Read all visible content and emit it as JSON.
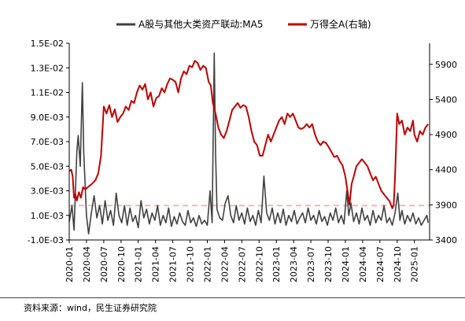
{
  "source_note": "资料来源：wind，民生证券研究院",
  "chart_data": {
    "type": "line",
    "title": "",
    "series": [
      {
        "name": "A股与其他大类资产联动:MA5",
        "axis": "left",
        "color": "#404040",
        "values": [
          [
            2020.0,
            0.0005
          ],
          [
            2020.04,
            0.0018
          ],
          [
            2020.07,
            -0.0002
          ],
          [
            2020.09,
            0.003
          ],
          [
            2020.11,
            0.0062
          ],
          [
            2020.13,
            0.0075
          ],
          [
            2020.16,
            0.005
          ],
          [
            2020.19,
            0.0118
          ],
          [
            2020.21,
            0.0062
          ],
          [
            2020.23,
            0.0035
          ],
          [
            2020.25,
            0.001
          ],
          [
            2020.28,
            -0.0005
          ],
          [
            2020.32,
            0.0012
          ],
          [
            2020.36,
            0.0026
          ],
          [
            2020.4,
            0.0008
          ],
          [
            2020.44,
            0.0018
          ],
          [
            2020.48,
            0.0003
          ],
          [
            2020.52,
            0.0022
          ],
          [
            2020.56,
            0.0006
          ],
          [
            2020.6,
            0.0014
          ],
          [
            2020.64,
            0.0002
          ],
          [
            2020.68,
            0.0028
          ],
          [
            2020.72,
            0.001
          ],
          [
            2020.76,
            0.0004
          ],
          [
            2020.8,
            0.0018
          ],
          [
            2020.84,
            0.0002
          ],
          [
            2020.88,
            0.0016
          ],
          [
            2020.92,
            0.0005
          ],
          [
            2020.96,
            0.001
          ],
          [
            2021.0,
            0.0
          ],
          [
            2021.04,
            0.0022
          ],
          [
            2021.08,
            0.0008
          ],
          [
            2021.12,
            0.0015
          ],
          [
            2021.16,
            0.0003
          ],
          [
            2021.2,
            0.0012
          ],
          [
            2021.24,
            0.0006
          ],
          [
            2021.28,
            0.0018
          ],
          [
            2021.32,
            0.0002
          ],
          [
            2021.36,
            0.001
          ],
          [
            2021.4,
            0.0004
          ],
          [
            2021.44,
            0.0016
          ],
          [
            2021.48,
            0.0001
          ],
          [
            2021.52,
            0.0009
          ],
          [
            2021.56,
            0.0003
          ],
          [
            2021.6,
            0.0012
          ],
          [
            2021.64,
            0.0005
          ],
          [
            2021.68,
            0.0002
          ],
          [
            2021.72,
            0.0014
          ],
          [
            2021.76,
            0.0004
          ],
          [
            2021.8,
            0.0008
          ],
          [
            2021.84,
            0.0001
          ],
          [
            2021.88,
            0.001
          ],
          [
            2021.92,
            0.0003
          ],
          [
            2021.96,
            0.0006
          ],
          [
            2022.0,
            0.0002
          ],
          [
            2022.04,
            0.003
          ],
          [
            2022.07,
            0.0004
          ],
          [
            2022.1,
            0.0142
          ],
          [
            2022.12,
            0.006
          ],
          [
            2022.14,
            0.0015
          ],
          [
            2022.18,
            0.0008
          ],
          [
            2022.22,
            0.0006
          ],
          [
            2022.26,
            0.002
          ],
          [
            2022.3,
            0.0026
          ],
          [
            2022.34,
            0.001
          ],
          [
            2022.38,
            0.0004
          ],
          [
            2022.42,
            0.0018
          ],
          [
            2022.46,
            0.0006
          ],
          [
            2022.5,
            0.0012
          ],
          [
            2022.54,
            0.0003
          ],
          [
            2022.58,
            0.0016
          ],
          [
            2022.62,
            0.0005
          ],
          [
            2022.66,
            0.001
          ],
          [
            2022.7,
            0.0002
          ],
          [
            2022.74,
            0.0014
          ],
          [
            2022.78,
            0.0004
          ],
          [
            2022.82,
            0.0042
          ],
          [
            2022.86,
            0.0012
          ],
          [
            2022.9,
            0.0006
          ],
          [
            2022.94,
            0.0016
          ],
          [
            2022.98,
            0.0003
          ],
          [
            2023.02,
            0.0012
          ],
          [
            2023.06,
            0.0004
          ],
          [
            2023.1,
            0.0015
          ],
          [
            2023.14,
            0.0002
          ],
          [
            2023.18,
            0.001
          ],
          [
            2023.22,
            0.0005
          ],
          [
            2023.26,
            0.0014
          ],
          [
            2023.3,
            0.0003
          ],
          [
            2023.34,
            0.0008
          ],
          [
            2023.38,
            0.0012
          ],
          [
            2023.42,
            0.0004
          ],
          [
            2023.46,
            0.0016
          ],
          [
            2023.5,
            0.0006
          ],
          [
            2023.54,
            0.001
          ],
          [
            2023.58,
            0.0003
          ],
          [
            2023.62,
            0.0014
          ],
          [
            2023.66,
            0.0005
          ],
          [
            2023.7,
            0.0009
          ],
          [
            2023.74,
            0.0002
          ],
          [
            2023.78,
            0.0012
          ],
          [
            2023.82,
            0.0006
          ],
          [
            2023.86,
            0.0016
          ],
          [
            2023.9,
            0.0004
          ],
          [
            2023.94,
            0.001
          ],
          [
            2023.98,
            0.0003
          ],
          [
            2024.02,
            0.003
          ],
          [
            2024.05,
            0.001
          ],
          [
            2024.08,
            0.002
          ],
          [
            2024.12,
            0.0005
          ],
          [
            2024.16,
            0.0012
          ],
          [
            2024.2,
            0.0003
          ],
          [
            2024.24,
            0.0016
          ],
          [
            2024.28,
            0.0006
          ],
          [
            2024.32,
            0.001
          ],
          [
            2024.36,
            0.0002
          ],
          [
            2024.4,
            0.0014
          ],
          [
            2024.44,
            0.0004
          ],
          [
            2024.48,
            0.001
          ],
          [
            2024.52,
            0.0006
          ],
          [
            2024.56,
            0.0018
          ],
          [
            2024.6,
            0.0004
          ],
          [
            2024.64,
            0.0008
          ],
          [
            2024.68,
            0.0002
          ],
          [
            2024.72,
            0.0012
          ],
          [
            2024.76,
            0.0028
          ],
          [
            2024.79,
            0.0006
          ],
          [
            2024.82,
            0.0014
          ],
          [
            2024.86,
            0.0003
          ],
          [
            2024.9,
            0.001
          ],
          [
            2024.94,
            0.0005
          ],
          [
            2024.98,
            0.0012
          ],
          [
            2025.02,
            0.0003
          ],
          [
            2025.06,
            0.0008
          ],
          [
            2025.1,
            0.0002
          ],
          [
            2025.14,
            0.0006
          ],
          [
            2025.18,
            0.001
          ],
          [
            2025.2,
            0.0004
          ]
        ]
      },
      {
        "name": "万得全A(右轴)",
        "axis": "right",
        "color": "#c00000",
        "values": [
          [
            2020.0,
            4380
          ],
          [
            2020.03,
            4400
          ],
          [
            2020.05,
            4300
          ],
          [
            2020.07,
            4000
          ],
          [
            2020.09,
            4050
          ],
          [
            2020.11,
            3960
          ],
          [
            2020.14,
            4080
          ],
          [
            2020.17,
            4000
          ],
          [
            2020.2,
            4150
          ],
          [
            2020.23,
            4120
          ],
          [
            2020.28,
            4160
          ],
          [
            2020.33,
            4200
          ],
          [
            2020.38,
            4250
          ],
          [
            2020.42,
            4350
          ],
          [
            2020.46,
            4600
          ],
          [
            2020.5,
            5300
          ],
          [
            2020.54,
            5200
          ],
          [
            2020.58,
            5320
          ],
          [
            2020.62,
            5150
          ],
          [
            2020.66,
            5260
          ],
          [
            2020.7,
            5080
          ],
          [
            2020.74,
            5150
          ],
          [
            2020.78,
            5200
          ],
          [
            2020.82,
            5300
          ],
          [
            2020.86,
            5250
          ],
          [
            2020.9,
            5380
          ],
          [
            2020.94,
            5350
          ],
          [
            2020.98,
            5500
          ],
          [
            2021.02,
            5600
          ],
          [
            2021.06,
            5540
          ],
          [
            2021.1,
            5620
          ],
          [
            2021.14,
            5400
          ],
          [
            2021.18,
            5500
          ],
          [
            2021.22,
            5300
          ],
          [
            2021.26,
            5420
          ],
          [
            2021.3,
            5450
          ],
          [
            2021.34,
            5560
          ],
          [
            2021.38,
            5500
          ],
          [
            2021.42,
            5620
          ],
          [
            2021.46,
            5700
          ],
          [
            2021.5,
            5680
          ],
          [
            2021.54,
            5650
          ],
          [
            2021.58,
            5500
          ],
          [
            2021.62,
            5700
          ],
          [
            2021.66,
            5800
          ],
          [
            2021.7,
            5760
          ],
          [
            2021.74,
            5880
          ],
          [
            2021.78,
            5860
          ],
          [
            2021.82,
            5950
          ],
          [
            2021.86,
            5920
          ],
          [
            2021.9,
            5820
          ],
          [
            2021.94,
            5880
          ],
          [
            2021.98,
            5850
          ],
          [
            2022.02,
            5650
          ],
          [
            2022.05,
            5600
          ],
          [
            2022.08,
            5350
          ],
          [
            2022.12,
            5200
          ],
          [
            2022.16,
            5000
          ],
          [
            2022.2,
            4900
          ],
          [
            2022.24,
            4850
          ],
          [
            2022.28,
            4950
          ],
          [
            2022.32,
            5100
          ],
          [
            2022.36,
            5250
          ],
          [
            2022.4,
            5300
          ],
          [
            2022.44,
            5350
          ],
          [
            2022.48,
            5280
          ],
          [
            2022.52,
            5320
          ],
          [
            2022.56,
            5300
          ],
          [
            2022.6,
            5150
          ],
          [
            2022.64,
            4950
          ],
          [
            2022.68,
            4800
          ],
          [
            2022.72,
            4750
          ],
          [
            2022.76,
            4600
          ],
          [
            2022.8,
            4600
          ],
          [
            2022.84,
            4750
          ],
          [
            2022.88,
            4900
          ],
          [
            2022.92,
            4800
          ],
          [
            2022.96,
            4900
          ],
          [
            2023.0,
            5000
          ],
          [
            2023.04,
            5100
          ],
          [
            2023.08,
            5150
          ],
          [
            2023.12,
            5050
          ],
          [
            2023.16,
            5200
          ],
          [
            2023.2,
            5150
          ],
          [
            2023.24,
            5200
          ],
          [
            2023.28,
            5100
          ],
          [
            2023.32,
            5000
          ],
          [
            2023.36,
            4980
          ],
          [
            2023.4,
            5000
          ],
          [
            2023.44,
            5050
          ],
          [
            2023.48,
            5000
          ],
          [
            2023.52,
            5050
          ],
          [
            2023.56,
            4900
          ],
          [
            2023.6,
            4800
          ],
          [
            2023.64,
            4750
          ],
          [
            2023.68,
            4800
          ],
          [
            2023.72,
            4780
          ],
          [
            2023.76,
            4720
          ],
          [
            2023.8,
            4650
          ],
          [
            2023.84,
            4580
          ],
          [
            2023.88,
            4600
          ],
          [
            2023.92,
            4520
          ],
          [
            2023.96,
            4460
          ],
          [
            2024.0,
            4300
          ],
          [
            2024.03,
            4100
          ],
          [
            2024.06,
            3900
          ],
          [
            2024.09,
            4200
          ],
          [
            2024.12,
            4300
          ],
          [
            2024.16,
            4450
          ],
          [
            2024.2,
            4500
          ],
          [
            2024.24,
            4550
          ],
          [
            2024.28,
            4500
          ],
          [
            2024.32,
            4450
          ],
          [
            2024.36,
            4350
          ],
          [
            2024.4,
            4250
          ],
          [
            2024.44,
            4300
          ],
          [
            2024.48,
            4200
          ],
          [
            2024.52,
            4100
          ],
          [
            2024.56,
            4050
          ],
          [
            2024.6,
            4000
          ],
          [
            2024.64,
            3950
          ],
          [
            2024.68,
            3850
          ],
          [
            2024.7,
            3900
          ],
          [
            2024.72,
            4300
          ],
          [
            2024.75,
            5200
          ],
          [
            2024.78,
            5050
          ],
          [
            2024.82,
            5100
          ],
          [
            2024.86,
            4900
          ],
          [
            2024.9,
            5000
          ],
          [
            2024.94,
            4950
          ],
          [
            2024.98,
            5100
          ],
          [
            2025.0,
            4900
          ],
          [
            2025.04,
            4800
          ],
          [
            2025.08,
            4950
          ],
          [
            2025.12,
            4900
          ],
          [
            2025.16,
            5000
          ],
          [
            2025.2,
            5050
          ]
        ]
      }
    ],
    "reference_line": {
      "axis": "left",
      "value": 0.0018,
      "color": "#f4b6b6",
      "style": "dashed"
    },
    "y_left": {
      "ylim": [
        -0.001,
        0.015
      ],
      "ticks": [
        -0.001,
        0.001,
        0.003,
        0.005,
        0.007,
        0.009,
        0.011,
        0.013,
        0.015
      ],
      "tick_labels": [
        "-1.0E-03",
        "1.0E-03",
        "3.0E-03",
        "5.0E-03",
        "7.0E-03",
        "9.0E-03",
        "1.1E-02",
        "1.3E-02",
        "1.5E-02"
      ]
    },
    "y_right": {
      "ylim": [
        3400,
        6200
      ],
      "ticks": [
        3400,
        3900,
        4400,
        4900,
        5400,
        5900
      ],
      "tick_labels": [
        "3400",
        "3900",
        "4400",
        "4900",
        "5400",
        "5900"
      ]
    },
    "x": {
      "xlim": [
        2020.0,
        2025.22
      ],
      "ticks": [
        2020.0,
        2020.25,
        2020.5,
        2020.75,
        2021.0,
        2021.25,
        2021.5,
        2021.75,
        2022.0,
        2022.25,
        2022.5,
        2022.75,
        2023.0,
        2023.25,
        2023.5,
        2023.75,
        2024.0,
        2024.25,
        2024.5,
        2024.75,
        2025.0
      ],
      "tick_labels": [
        "2020-01",
        "2020-04",
        "2020-07",
        "2020-10",
        "2021-01",
        "2021-04",
        "2021-07",
        "2021-10",
        "2022-01",
        "2022-04",
        "2022-07",
        "2022-10",
        "2023-01",
        "2023-04",
        "2023-07",
        "2023-10",
        "2024-01",
        "2024-04",
        "2024-07",
        "2024-10",
        "2025-01"
      ]
    },
    "legend": {
      "placement": "top"
    },
    "grid": false
  }
}
